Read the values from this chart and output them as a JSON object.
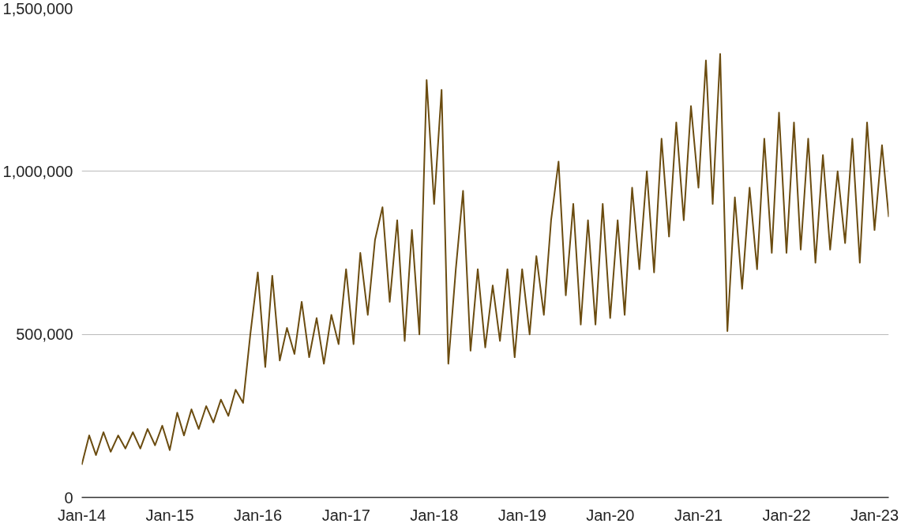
{
  "chart_data": {
    "type": "line",
    "color": "#6b4c10",
    "x": [
      "2014-01",
      "2014-02",
      "2014-03",
      "2014-04",
      "2014-05",
      "2014-06",
      "2014-07",
      "2014-08",
      "2014-09",
      "2014-10",
      "2014-11",
      "2014-12",
      "2015-01",
      "2015-02",
      "2015-03",
      "2015-04",
      "2015-05",
      "2015-06",
      "2015-07",
      "2015-08",
      "2015-09",
      "2015-10",
      "2015-11",
      "2015-12",
      "2016-01",
      "2016-02",
      "2016-03",
      "2016-04",
      "2016-05",
      "2016-06",
      "2016-07",
      "2016-08",
      "2016-09",
      "2016-10",
      "2016-11",
      "2016-12",
      "2017-01",
      "2017-02",
      "2017-03",
      "2017-04",
      "2017-05",
      "2017-06",
      "2017-07",
      "2017-08",
      "2017-09",
      "2017-10",
      "2017-11",
      "2017-12",
      "2018-01",
      "2018-02",
      "2018-03",
      "2018-04",
      "2018-05",
      "2018-06",
      "2018-07",
      "2018-08",
      "2018-09",
      "2018-10",
      "2018-11",
      "2018-12",
      "2019-01",
      "2019-02",
      "2019-03",
      "2019-04",
      "2019-05",
      "2019-06",
      "2019-07",
      "2019-08",
      "2019-09",
      "2019-10",
      "2019-11",
      "2019-12",
      "2020-01",
      "2020-02",
      "2020-03",
      "2020-04",
      "2020-05",
      "2020-06",
      "2020-07",
      "2020-08",
      "2020-09",
      "2020-10",
      "2020-11",
      "2020-12",
      "2021-01",
      "2021-02",
      "2021-03",
      "2021-04",
      "2021-05",
      "2021-06",
      "2021-07",
      "2021-08",
      "2021-09",
      "2021-10",
      "2021-11",
      "2021-12",
      "2022-01",
      "2022-02",
      "2022-03",
      "2022-04",
      "2022-05",
      "2022-06",
      "2022-07",
      "2022-08",
      "2022-09",
      "2022-10",
      "2022-11",
      "2022-12",
      "2023-01",
      "2023-02",
      "2023-03"
    ],
    "values": [
      100000,
      190000,
      130000,
      200000,
      140000,
      190000,
      150000,
      200000,
      150000,
      210000,
      160000,
      220000,
      145000,
      260000,
      190000,
      270000,
      210000,
      280000,
      230000,
      300000,
      250000,
      330000,
      290000,
      500000,
      690000,
      400000,
      680000,
      420000,
      520000,
      440000,
      600000,
      430000,
      550000,
      410000,
      560000,
      470000,
      700000,
      470000,
      750000,
      560000,
      790000,
      890000,
      600000,
      850000,
      480000,
      820000,
      500000,
      1280000,
      900000,
      1250000,
      410000,
      700000,
      940000,
      450000,
      700000,
      460000,
      650000,
      480000,
      700000,
      430000,
      700000,
      500000,
      740000,
      560000,
      850000,
      1030000,
      620000,
      900000,
      530000,
      850000,
      530000,
      900000,
      550000,
      850000,
      560000,
      950000,
      700000,
      1000000,
      690000,
      1100000,
      800000,
      1150000,
      850000,
      1200000,
      950000,
      1340000,
      900000,
      1360000,
      510000,
      920000,
      640000,
      950000,
      700000,
      1100000,
      750000,
      1180000,
      750000,
      1150000,
      760000,
      1100000,
      720000,
      1050000,
      760000,
      1000000,
      780000,
      1100000,
      720000,
      1150000,
      820000,
      1080000,
      860000
    ],
    "xlim": [
      "2014-01",
      "2023-03"
    ],
    "xticks": [
      {
        "value": "2014-01",
        "label": "Jan-14"
      },
      {
        "value": "2015-01",
        "label": "Jan-15"
      },
      {
        "value": "2016-01",
        "label": "Jan-16"
      },
      {
        "value": "2017-01",
        "label": "Jan-17"
      },
      {
        "value": "2018-01",
        "label": "Jan-18"
      },
      {
        "value": "2019-01",
        "label": "Jan-19"
      },
      {
        "value": "2020-01",
        "label": "Jan-20"
      },
      {
        "value": "2021-01",
        "label": "Jan-21"
      },
      {
        "value": "2022-01",
        "label": "Jan-22"
      },
      {
        "value": "2023-01",
        "label": "Jan-23"
      }
    ],
    "ylim": [
      0,
      1500000
    ],
    "yticks": [
      {
        "value": 0,
        "label": "0"
      },
      {
        "value": 500000,
        "label": "500,000"
      },
      {
        "value": 1000000,
        "label": "1,000,000"
      },
      {
        "value": 1500000,
        "label": "1,500,000"
      }
    ],
    "grid": "y"
  }
}
